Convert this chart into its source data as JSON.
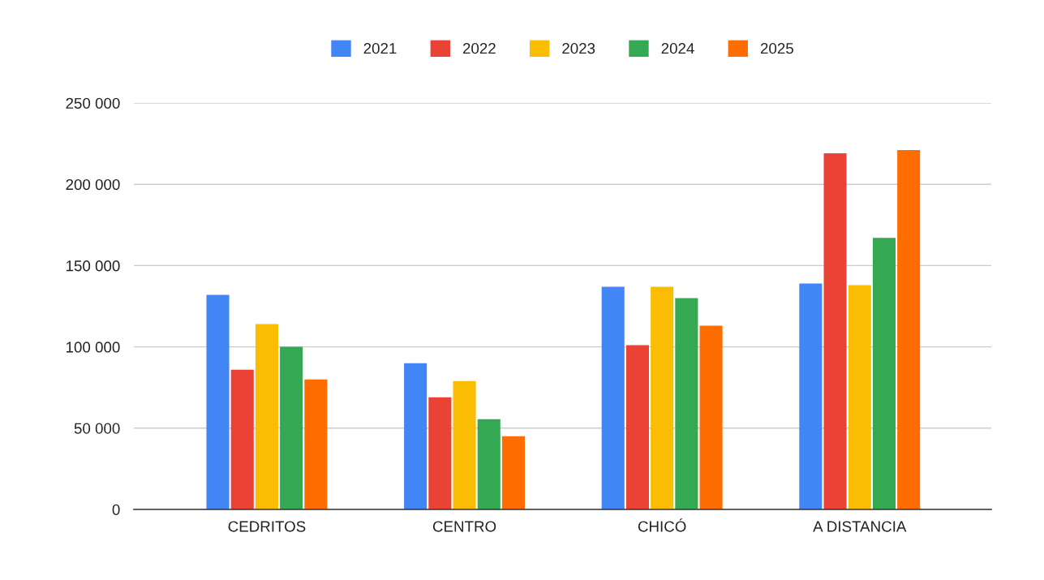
{
  "chart_data": {
    "type": "bar",
    "categories": [
      "CEDRITOS",
      "CENTRO",
      "CHICÓ",
      "A DISTANCIA"
    ],
    "series": [
      {
        "name": "2021",
        "color": "#4285f4",
        "values": [
          132000,
          90000,
          137000,
          139000
        ]
      },
      {
        "name": "2022",
        "color": "#ea4335",
        "values": [
          86000,
          69000,
          101000,
          219000
        ]
      },
      {
        "name": "2023",
        "color": "#fbbc04",
        "values": [
          114000,
          79000,
          137000,
          138000
        ]
      },
      {
        "name": "2024",
        "color": "#34a853",
        "values": [
          100000,
          55500,
          130000,
          167000
        ]
      },
      {
        "name": "2025",
        "color": "#ff6d01",
        "values": [
          80000,
          45000,
          113000,
          221000
        ]
      }
    ],
    "ylim": [
      0,
      250000
    ],
    "yticks": [
      0,
      {
        "value": 50000,
        "label": "50 000"
      },
      {
        "value": 100000,
        "label": "100 000"
      },
      {
        "value": 150000,
        "label": "150 000"
      },
      {
        "value": 200000,
        "label": "200 000"
      },
      {
        "value": 250000,
        "label": "250 000"
      }
    ],
    "grid": "y",
    "legend": "top"
  }
}
